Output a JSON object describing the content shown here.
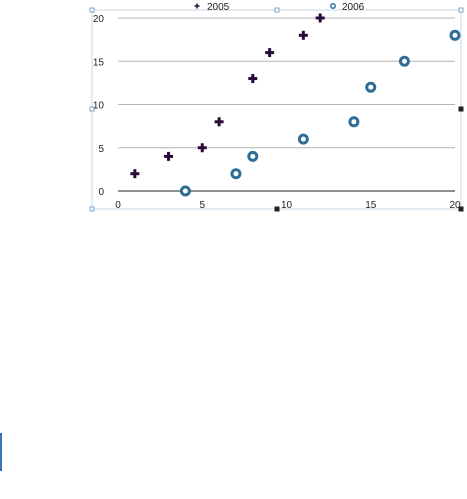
{
  "chart_data": {
    "type": "scatter",
    "title": "",
    "xlabel": "",
    "ylabel": "",
    "xlim": [
      0,
      20
    ],
    "ylim": [
      0,
      20
    ],
    "x_ticks": [
      "0",
      "5",
      "10",
      "15",
      "20"
    ],
    "y_ticks": [
      "0",
      "5",
      "10",
      "15",
      "20"
    ],
    "grid": "horizontal",
    "legend": "top",
    "series": [
      {
        "name": "2005",
        "marker": "plus",
        "color": "#2a0a3a",
        "x": [
          1,
          3,
          5,
          6,
          8,
          9,
          11,
          12
        ],
        "y": [
          2,
          4,
          5,
          8,
          13,
          16,
          18,
          20
        ]
      },
      {
        "name": "2006",
        "marker": "ring",
        "color": "#2e6e96",
        "x": [
          4,
          7,
          8,
          11,
          14,
          15,
          17,
          20
        ],
        "y": [
          0,
          2,
          4,
          6,
          8,
          12,
          15,
          18
        ]
      }
    ]
  }
}
